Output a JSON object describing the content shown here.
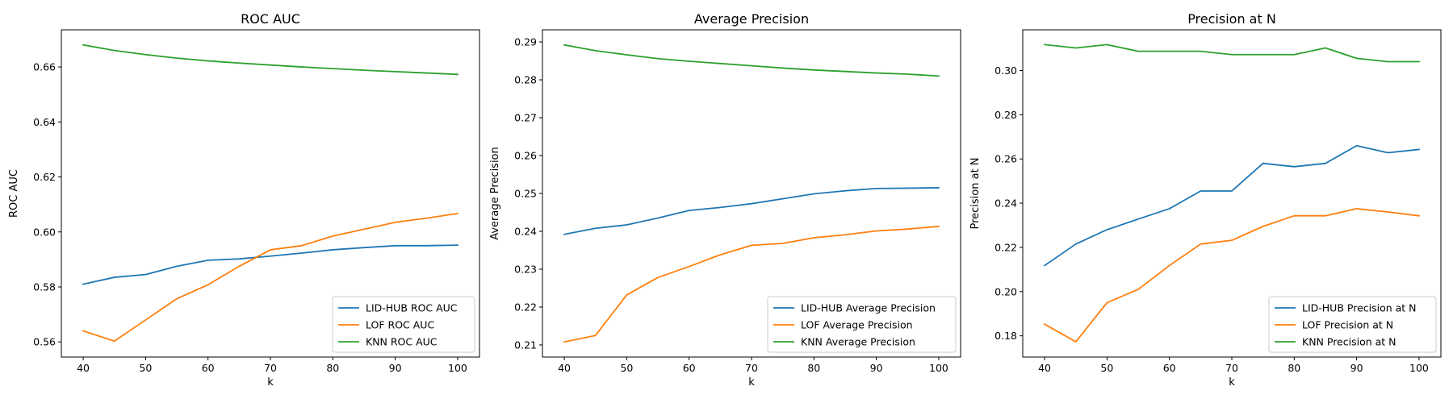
{
  "chart_data": [
    {
      "type": "line",
      "title": "ROC AUC",
      "xlabel": "k",
      "ylabel": "ROC AUC",
      "xlim": [
        36.5,
        103.5
      ],
      "ylim": [
        0.5545,
        0.6735
      ],
      "xticks": [
        40,
        50,
        60,
        70,
        80,
        90,
        100
      ],
      "yticks": [
        0.56,
        0.58,
        0.6,
        0.62,
        0.64,
        0.66
      ],
      "ytick_decimals": 2,
      "legend_position": "lower-right",
      "grid": false,
      "x": [
        40,
        45,
        50,
        55,
        60,
        65,
        70,
        75,
        80,
        85,
        90,
        95,
        100
      ],
      "series": [
        {
          "name": "LID-HUB ROC AUC",
          "color": "#1f77b4",
          "values": [
            0.581,
            0.5835,
            0.5845,
            0.5875,
            0.5897,
            0.5902,
            0.5912,
            0.5923,
            0.5935,
            0.5943,
            0.595,
            0.595,
            0.5952
          ]
        },
        {
          "name": "LOF ROC AUC",
          "color": "#ff7f0e",
          "values": [
            0.564,
            0.5603,
            0.568,
            0.5757,
            0.5808,
            0.5875,
            0.5935,
            0.595,
            0.5985,
            0.601,
            0.6035,
            0.605,
            0.6067
          ]
        },
        {
          "name": "KNN ROC AUC",
          "color": "#2ca02c",
          "values": [
            0.668,
            0.666,
            0.6645,
            0.6632,
            0.6622,
            0.6614,
            0.6607,
            0.66,
            0.6594,
            0.6588,
            0.6583,
            0.6578,
            0.6573
          ]
        }
      ]
    },
    {
      "type": "line",
      "title": "Average Precision",
      "xlabel": "k",
      "ylabel": "Average Precision",
      "xlim": [
        36.5,
        103.5
      ],
      "ylim": [
        0.2068,
        0.2932
      ],
      "xticks": [
        40,
        50,
        60,
        70,
        80,
        90,
        100
      ],
      "yticks": [
        0.21,
        0.22,
        0.23,
        0.24,
        0.25,
        0.26,
        0.27,
        0.28,
        0.29
      ],
      "ytick_decimals": 2,
      "legend_position": "lower-right",
      "grid": false,
      "x": [
        40,
        45,
        50,
        55,
        60,
        65,
        70,
        75,
        80,
        85,
        90,
        95,
        100
      ],
      "series": [
        {
          "name": "LID-HUB Average Precision",
          "color": "#1f77b4",
          "values": [
            0.2392,
            0.2408,
            0.2417,
            0.2435,
            0.2455,
            0.2463,
            0.2473,
            0.2486,
            0.2499,
            0.2507,
            0.2513,
            0.2514,
            0.2515
          ]
        },
        {
          "name": "LOF Average Precision",
          "color": "#ff7f0e",
          "values": [
            0.2108,
            0.2125,
            0.2232,
            0.2278,
            0.2307,
            0.2338,
            0.2363,
            0.2368,
            0.2383,
            0.2391,
            0.2401,
            0.2406,
            0.2413
          ]
        },
        {
          "name": "KNN Average Precision",
          "color": "#2ca02c",
          "values": [
            0.2892,
            0.2877,
            0.2866,
            0.2856,
            0.2849,
            0.2843,
            0.2837,
            0.2831,
            0.2826,
            0.2822,
            0.2818,
            0.2815,
            0.281
          ]
        }
      ]
    },
    {
      "type": "line",
      "title": "Precision at N",
      "xlabel": "k",
      "ylabel": "Precision at N",
      "xlim": [
        36.5,
        103.5
      ],
      "ylim": [
        0.1704,
        0.3184
      ],
      "xticks": [
        40,
        50,
        60,
        70,
        80,
        90,
        100
      ],
      "yticks": [
        0.18,
        0.2,
        0.22,
        0.24,
        0.26,
        0.28,
        0.3
      ],
      "ytick_decimals": 2,
      "legend_position": "lower-right",
      "grid": false,
      "x": [
        40,
        45,
        50,
        55,
        60,
        65,
        70,
        75,
        80,
        85,
        90,
        95,
        100
      ],
      "series": [
        {
          "name": "LID-HUB Precision at N",
          "color": "#1f77b4",
          "values": [
            0.2118,
            0.2215,
            0.228,
            0.2328,
            0.2375,
            0.2455,
            0.2455,
            0.258,
            0.2565,
            0.258,
            0.266,
            0.2628,
            0.2643
          ]
        },
        {
          "name": "LOF Precision at N",
          "color": "#ff7f0e",
          "values": [
            0.1853,
            0.1773,
            0.195,
            0.201,
            0.2118,
            0.2215,
            0.2232,
            0.2295,
            0.2343,
            0.2343,
            0.2375,
            0.236,
            0.2343
          ]
        },
        {
          "name": "KNN Precision at N",
          "color": "#2ca02c",
          "values": [
            0.3117,
            0.3102,
            0.3117,
            0.3087,
            0.3087,
            0.3087,
            0.3072,
            0.3072,
            0.3072,
            0.3102,
            0.3055,
            0.304,
            0.304
          ]
        }
      ]
    }
  ]
}
